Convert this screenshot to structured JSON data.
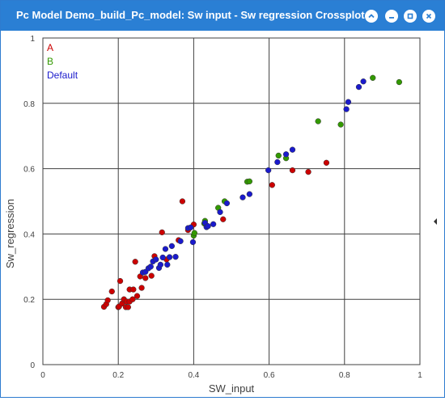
{
  "window": {
    "title": "Pc Model Demo_build_Pc_model: Sw input - Sw regression Crossplot"
  },
  "chart_data": {
    "type": "scatter",
    "title": "",
    "xlabel": "SW_input",
    "ylabel": "Sw_regression",
    "xlim": [
      0,
      1
    ],
    "ylim": [
      0,
      1
    ],
    "xticks": [
      "0",
      "0.2",
      "0.4",
      "0.6",
      "0.8",
      "1"
    ],
    "yticks": [
      "0",
      "0.2",
      "0.4",
      "0.6",
      "0.8",
      "1"
    ],
    "grid": true,
    "legend_position": "top-left",
    "series": [
      {
        "name": "A",
        "color": "#cc0000",
        "points": [
          [
            0.162,
            0.177
          ],
          [
            0.168,
            0.185
          ],
          [
            0.172,
            0.197
          ],
          [
            0.183,
            0.224
          ],
          [
            0.2,
            0.176
          ],
          [
            0.202,
            0.178
          ],
          [
            0.205,
            0.256
          ],
          [
            0.21,
            0.187
          ],
          [
            0.215,
            0.2
          ],
          [
            0.22,
            0.176
          ],
          [
            0.222,
            0.193
          ],
          [
            0.226,
            0.176
          ],
          [
            0.23,
            0.193
          ],
          [
            0.23,
            0.23
          ],
          [
            0.238,
            0.2
          ],
          [
            0.24,
            0.23
          ],
          [
            0.245,
            0.315
          ],
          [
            0.25,
            0.21
          ],
          [
            0.258,
            0.27
          ],
          [
            0.262,
            0.235
          ],
          [
            0.272,
            0.265
          ],
          [
            0.288,
            0.272
          ],
          [
            0.296,
            0.332
          ],
          [
            0.316,
            0.405
          ],
          [
            0.328,
            0.322
          ],
          [
            0.36,
            0.381
          ],
          [
            0.37,
            0.5
          ],
          [
            0.385,
            0.412
          ],
          [
            0.4,
            0.429
          ],
          [
            0.478,
            0.445
          ],
          [
            0.608,
            0.55
          ],
          [
            0.662,
            0.595
          ],
          [
            0.704,
            0.59
          ],
          [
            0.752,
            0.618
          ]
        ]
      },
      {
        "name": "B",
        "color": "#339900",
        "points": [
          [
            0.4,
            0.395
          ],
          [
            0.402,
            0.403
          ],
          [
            0.428,
            0.432
          ],
          [
            0.43,
            0.44
          ],
          [
            0.465,
            0.48
          ],
          [
            0.482,
            0.5
          ],
          [
            0.542,
            0.56
          ],
          [
            0.548,
            0.561
          ],
          [
            0.625,
            0.64
          ],
          [
            0.645,
            0.632
          ],
          [
            0.73,
            0.745
          ],
          [
            0.79,
            0.735
          ],
          [
            0.875,
            0.878
          ],
          [
            0.945,
            0.865
          ]
        ]
      },
      {
        "name": "Default",
        "color": "#1a1acc",
        "points": [
          [
            0.265,
            0.282
          ],
          [
            0.272,
            0.284
          ],
          [
            0.28,
            0.295
          ],
          [
            0.286,
            0.3
          ],
          [
            0.292,
            0.316
          ],
          [
            0.3,
            0.322
          ],
          [
            0.308,
            0.296
          ],
          [
            0.312,
            0.306
          ],
          [
            0.318,
            0.328
          ],
          [
            0.325,
            0.354
          ],
          [
            0.33,
            0.306
          ],
          [
            0.336,
            0.329
          ],
          [
            0.342,
            0.363
          ],
          [
            0.352,
            0.33
          ],
          [
            0.365,
            0.378
          ],
          [
            0.385,
            0.418
          ],
          [
            0.392,
            0.42
          ],
          [
            0.398,
            0.375
          ],
          [
            0.43,
            0.434
          ],
          [
            0.434,
            0.421
          ],
          [
            0.438,
            0.424
          ],
          [
            0.452,
            0.43
          ],
          [
            0.47,
            0.467
          ],
          [
            0.488,
            0.494
          ],
          [
            0.53,
            0.512
          ],
          [
            0.548,
            0.522
          ],
          [
            0.598,
            0.595
          ],
          [
            0.622,
            0.62
          ],
          [
            0.645,
            0.644
          ],
          [
            0.662,
            0.658
          ],
          [
            0.805,
            0.782
          ],
          [
            0.81,
            0.804
          ],
          [
            0.838,
            0.85
          ],
          [
            0.85,
            0.867
          ]
        ]
      }
    ]
  }
}
